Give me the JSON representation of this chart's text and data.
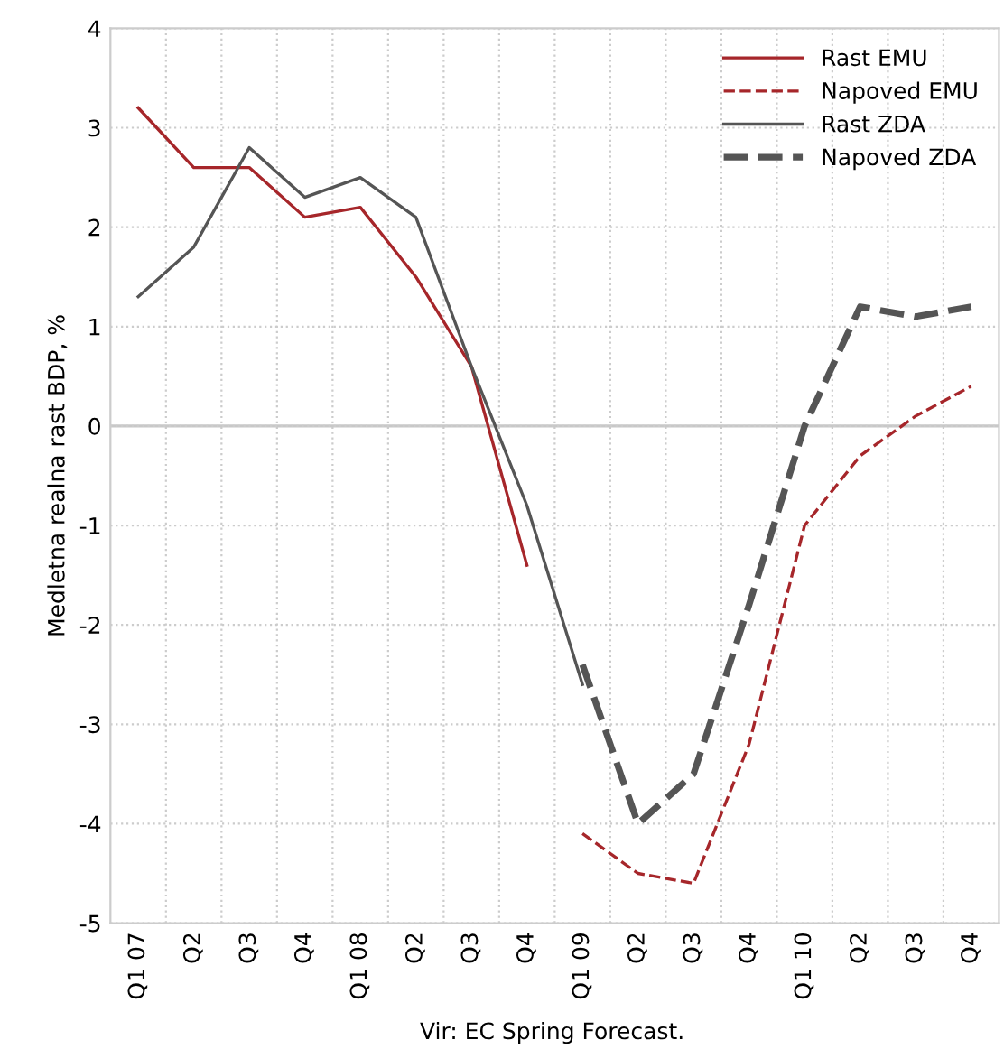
{
  "chart_data": {
    "type": "line",
    "ylabel": "Medletna realna rast BDP, %",
    "annotations": [
      "Vir: EC Spring Forecast."
    ],
    "categories": [
      "Q1 07",
      "Q2",
      "Q3",
      "Q4",
      "Q1 08",
      "Q2",
      "Q3",
      "Q4",
      "Q1 09",
      "Q2",
      "Q3",
      "Q4",
      "Q1 10",
      "Q2",
      "Q3",
      "Q4"
    ],
    "series": [
      {
        "name": "Rast EMU",
        "color": "#a6262a",
        "line_style": "solid",
        "values": [
          3.2,
          2.6,
          2.6,
          2.1,
          2.2,
          1.5,
          0.6,
          -1.4,
          null,
          null,
          null,
          null,
          null,
          null,
          null,
          null
        ]
      },
      {
        "name": "Napoved EMU",
        "color": "#a6262a",
        "line_style": "dashed",
        "values": [
          null,
          null,
          null,
          null,
          null,
          null,
          null,
          null,
          -4.1,
          -4.5,
          -4.6,
          -3.2,
          -1.0,
          -0.3,
          0.1,
          0.4
        ]
      },
      {
        "name": "Rast ZDA",
        "color": "#555555",
        "line_style": "solid",
        "values": [
          1.3,
          1.8,
          2.8,
          2.3,
          2.5,
          2.1,
          0.6,
          -0.8,
          -2.6,
          null,
          null,
          null,
          null,
          null,
          null,
          null
        ]
      },
      {
        "name": "Napoved ZDA",
        "color": "#555555",
        "line_style": "dashed",
        "values": [
          null,
          null,
          null,
          null,
          null,
          null,
          null,
          null,
          -2.4,
          -4.0,
          -3.5,
          -1.8,
          0.0,
          1.2,
          1.1,
          1.2
        ]
      }
    ],
    "ylim": [
      -5,
      4
    ],
    "yticks": [
      -5,
      -4,
      -3,
      -2,
      -1,
      0,
      1,
      2,
      3,
      4
    ],
    "grid": true,
    "legend": "top right"
  }
}
